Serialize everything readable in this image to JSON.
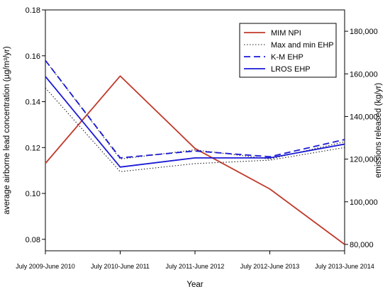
{
  "chart_data": {
    "type": "line",
    "categories": [
      "July 2009-June 2010",
      "July 2010-June 2011",
      "July 2011-June 2012",
      "July 2012-June 2013",
      "July 2013-June 2014"
    ],
    "xlabel": "Year",
    "ylabel": "average airborne lead concentration (µg/m³/yr)",
    "y2label": "emissions released (kg/yr)",
    "ylim": [
      0.075,
      0.18
    ],
    "yticks": [
      "0.08",
      "0.10",
      "0.12",
      "0.14",
      "0.16",
      "0.18"
    ],
    "y2lim": [
      77000,
      190000
    ],
    "y2ticks": [
      "80,000",
      "100,000",
      "120,000",
      "140,000",
      "160,000",
      "180,000"
    ],
    "legend_position": "top-right",
    "grid": false,
    "series": [
      {
        "name": "MIM NPI",
        "axis": "right",
        "style": "solid",
        "color": "#c0392b",
        "values": [
          118000,
          159000,
          125000,
          106000,
          80000
        ]
      },
      {
        "name": "Max and min EHP",
        "axis": "left",
        "style": "dotted",
        "color": "#222222",
        "band": true,
        "values_max": [
          0.158,
          0.115,
          0.119,
          0.115,
          0.1225
        ],
        "values_min": [
          0.146,
          0.1095,
          0.113,
          0.1145,
          0.12
        ]
      },
      {
        "name": "K-M EHP",
        "axis": "left",
        "style": "dashed",
        "color": "#1a1ad6",
        "values": [
          0.158,
          0.1155,
          0.1185,
          0.116,
          0.1235
        ]
      },
      {
        "name": "LROS EHP",
        "axis": "left",
        "style": "solid",
        "color": "#1a1ad6",
        "values": [
          0.151,
          0.1115,
          0.1155,
          0.1155,
          0.1215
        ]
      }
    ]
  }
}
